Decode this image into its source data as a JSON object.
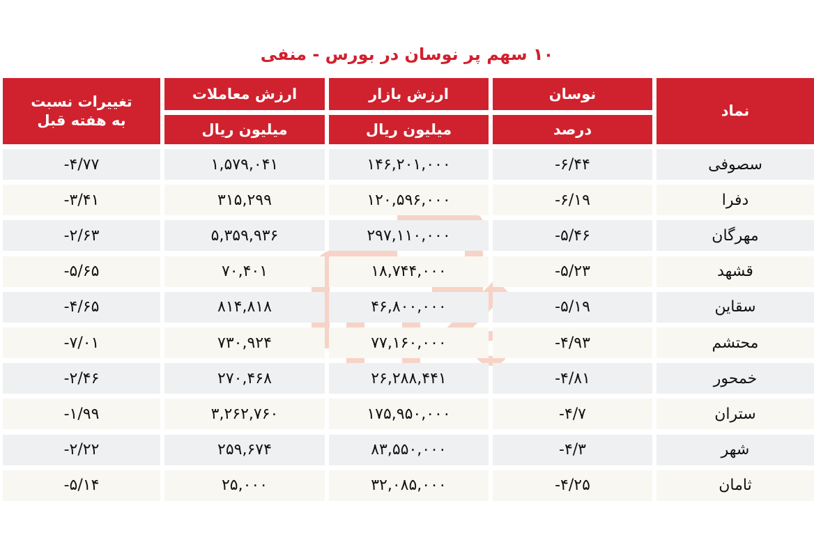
{
  "title": "۱۰ سهم پر نوسان در بورس - منفی",
  "watermark": "SEDAYE BOURSE",
  "colors": {
    "header_bg": "#d0222e",
    "title": "#d0202e",
    "row_alt_1": "#eef0f1",
    "row_alt_2": "#f8f7f1"
  },
  "headers": {
    "symbol": "نماد",
    "volatility": "نوسان",
    "volatility_unit": "درصد",
    "market_value": "ارزش بازار",
    "market_value_unit": "میلیون ریال",
    "trade_value": "ارزش معاملات",
    "trade_value_unit": "میلیون ریال",
    "weekly_change": "تغییرات نسبت به هفته قبل"
  },
  "rows": [
    {
      "symbol": "سصوفی",
      "volatility": "-۶/۴۴",
      "market_value": "۱۴۶,۲۰۱,۰۰۰",
      "trade_value": "۱,۵۷۹,۰۴۱",
      "weekly_change": "-۴/۷۷"
    },
    {
      "symbol": "دفرا",
      "volatility": "-۶/۱۹",
      "market_value": "۱۲۰,۵۹۶,۰۰۰",
      "trade_value": "۳۱۵,۲۹۹",
      "weekly_change": "-۳/۴۱"
    },
    {
      "symbol": "مهرگان",
      "volatility": "-۵/۴۶",
      "market_value": "۲۹۷,۱۱۰,۰۰۰",
      "trade_value": "۵,۳۵۹,۹۳۶",
      "weekly_change": "-۲/۶۳"
    },
    {
      "symbol": "قشهد",
      "volatility": "-۵/۲۳",
      "market_value": "۱۸,۷۴۴,۰۰۰",
      "trade_value": "۷۰,۴۰۱",
      "weekly_change": "-۵/۶۵"
    },
    {
      "symbol": "سقاین",
      "volatility": "-۵/۱۹",
      "market_value": "۴۶,۸۰۰,۰۰۰",
      "trade_value": "۸۱۴,۸۱۸",
      "weekly_change": "-۴/۶۵"
    },
    {
      "symbol": "محتشم",
      "volatility": "-۴/۹۳",
      "market_value": "۷۷,۱۶۰,۰۰۰",
      "trade_value": "۷۳۰,۹۲۴",
      "weekly_change": "-۷/۰۱"
    },
    {
      "symbol": "خمحور",
      "volatility": "-۴/۸۱",
      "market_value": "۲۶,۲۸۸,۴۴۱",
      "trade_value": "۲۷۰,۴۶۸",
      "weekly_change": "-۲/۴۶"
    },
    {
      "symbol": "ستران",
      "volatility": "-۴/۷",
      "market_value": "۱۷۵,۹۵۰,۰۰۰",
      "trade_value": "۳,۲۶۲,۷۶۰",
      "weekly_change": "-۱/۹۹"
    },
    {
      "symbol": "شهر",
      "volatility": "-۴/۳",
      "market_value": "۸۳,۵۵۰,۰۰۰",
      "trade_value": "۲۵۹,۶۷۴",
      "weekly_change": "-۲/۲۲"
    },
    {
      "symbol": "ثامان",
      "volatility": "-۴/۲۵",
      "market_value": "۳۲,۰۸۵,۰۰۰",
      "trade_value": "۲۵,۰۰۰",
      "weekly_change": "-۵/۱۴"
    }
  ]
}
